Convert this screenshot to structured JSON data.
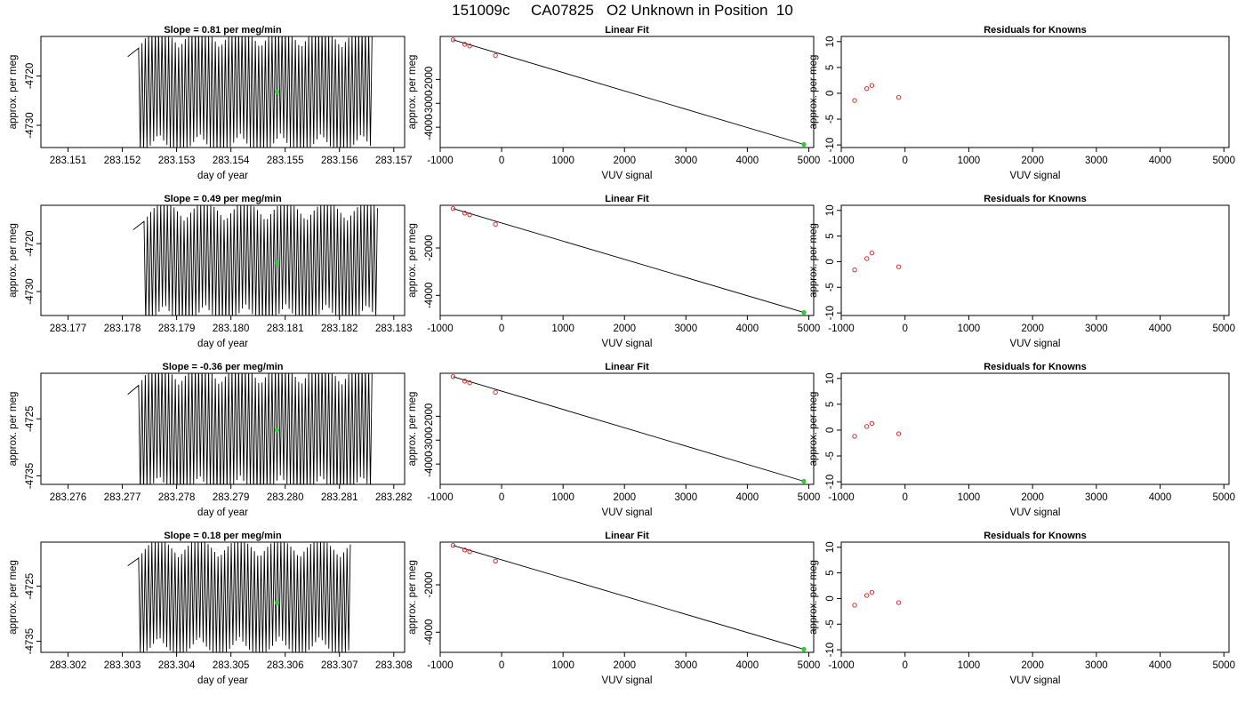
{
  "page": {
    "title": "151009c     CA07825   O2 Unknown in Position  10"
  },
  "colors": {
    "trace": "#000000",
    "known_point": "#cc3333",
    "unknown_point": "#33cc33",
    "frame": "#000000"
  },
  "chart_data": [
    {
      "type": "line",
      "row": 0,
      "col": 0,
      "title": "Slope =  0.81  per meg/min",
      "xlabel": "day of year",
      "ylabel": "approx. per meg",
      "xlim": [
        283.1505,
        283.1572
      ],
      "ylim": [
        -4734.5,
        -4712
      ],
      "xticks": [
        283.151,
        283.152,
        283.153,
        283.154,
        283.155,
        283.156,
        283.157
      ],
      "xtick_labels": [
        "283.151",
        "283.152",
        "283.153",
        "283.154",
        "283.155",
        "283.156",
        "283.157"
      ],
      "yticks": [
        -4720,
        -4730
      ],
      "ytick_labels": [
        "-4720",
        "-4730"
      ],
      "trace": {
        "x_start": 283.1523,
        "x_end": 283.1566,
        "cycles": 70,
        "center": -4723,
        "amp": 11.5,
        "pre_start": 283.1521
      },
      "unknown_point": {
        "x": 283.15485,
        "y": -4723.2
      }
    },
    {
      "type": "scatter",
      "row": 0,
      "col": 1,
      "title": "Linear Fit",
      "xlabel": "VUV signal",
      "ylabel": "approx. per meg",
      "xlim": [
        -1000,
        5080
      ],
      "ylim": [
        -4850,
        -200
      ],
      "xticks": [
        -1000,
        0,
        1000,
        2000,
        3000,
        4000,
        5000
      ],
      "xtick_labels": [
        "-1000",
        "0",
        "1000",
        "2000",
        "3000",
        "4000",
        "5000"
      ],
      "yticks": [
        -2000,
        -3000,
        -4000
      ],
      "ytick_labels": [
        "-2000",
        "-3000",
        "-4000"
      ],
      "knowns": [
        {
          "x": -790,
          "y": -340
        },
        {
          "x": -600,
          "y": -530
        },
        {
          "x": -520,
          "y": -600
        },
        {
          "x": -100,
          "y": -1000
        }
      ],
      "unknown": {
        "x": 4920,
        "y": -4720
      },
      "fit_line": {
        "x": [
          -790,
          4920
        ],
        "y": [
          -340,
          -4720
        ]
      }
    },
    {
      "type": "scatter",
      "row": 0,
      "col": 2,
      "title": "Residuals for Knowns",
      "xlabel": "VUV signal",
      "ylabel": "approx. per meg",
      "xlim": [
        -1000,
        5080
      ],
      "ylim": [
        -10.5,
        11
      ],
      "xticks": [
        -1000,
        0,
        1000,
        2000,
        3000,
        4000,
        5000
      ],
      "xtick_labels": [
        "-1000",
        "0",
        "1000",
        "2000",
        "3000",
        "4000",
        "5000"
      ],
      "yticks": [
        10,
        5,
        0,
        -5,
        -10
      ],
      "ytick_labels": [
        "10",
        "5",
        "0",
        "-5",
        "-10"
      ],
      "points": [
        {
          "x": -790,
          "y": -1.4
        },
        {
          "x": -600,
          "y": 0.9
        },
        {
          "x": -520,
          "y": 1.5
        },
        {
          "x": -100,
          "y": -0.8
        }
      ]
    },
    {
      "type": "line",
      "row": 1,
      "col": 0,
      "title": "Slope =  0.49  per meg/min",
      "xlabel": "day of year",
      "ylabel": "approx. per meg",
      "xlim": [
        283.1765,
        283.1832
      ],
      "ylim": [
        -4735,
        -4712
      ],
      "xticks": [
        283.177,
        283.178,
        283.179,
        283.18,
        283.181,
        283.182,
        283.183
      ],
      "xtick_labels": [
        "283.177",
        "283.178",
        "283.179",
        "283.180",
        "283.181",
        "283.182",
        "283.183"
      ],
      "yticks": [
        -4720,
        -4730
      ],
      "ytick_labels": [
        "-4720",
        "-4730"
      ],
      "trace": {
        "x_start": 283.1784,
        "x_end": 283.1827,
        "cycles": 70,
        "center": -4724,
        "amp": 11.5,
        "pre_start": 283.1782
      },
      "unknown_point": {
        "x": 283.18085,
        "y": -4724
      }
    },
    {
      "type": "scatter",
      "row": 1,
      "col": 1,
      "title": "Linear Fit",
      "xlabel": "VUV signal",
      "ylabel": "approx. per meg",
      "xlim": [
        -1000,
        5080
      ],
      "ylim": [
        -4850,
        -200
      ],
      "xticks": [
        -1000,
        0,
        1000,
        2000,
        3000,
        4000,
        5000
      ],
      "xtick_labels": [
        "-1000",
        "0",
        "1000",
        "2000",
        "3000",
        "4000",
        "5000"
      ],
      "yticks": [
        -2000,
        -4000
      ],
      "ytick_labels": [
        "-2000",
        "-4000"
      ],
      "knowns": [
        {
          "x": -790,
          "y": -340
        },
        {
          "x": -600,
          "y": -530
        },
        {
          "x": -520,
          "y": -600
        },
        {
          "x": -100,
          "y": -1000
        }
      ],
      "unknown": {
        "x": 4920,
        "y": -4720
      },
      "fit_line": {
        "x": [
          -790,
          4920
        ],
        "y": [
          -340,
          -4720
        ]
      }
    },
    {
      "type": "scatter",
      "row": 1,
      "col": 2,
      "title": "Residuals for Knowns",
      "xlabel": "VUV signal",
      "ylabel": "approx. per meg",
      "xlim": [
        -1000,
        5080
      ],
      "ylim": [
        -10.5,
        11
      ],
      "xticks": [
        -1000,
        0,
        1000,
        2000,
        3000,
        4000,
        5000
      ],
      "xtick_labels": [
        "-1000",
        "0",
        "1000",
        "2000",
        "3000",
        "4000",
        "5000"
      ],
      "yticks": [
        10,
        5,
        0,
        -5,
        -10
      ],
      "ytick_labels": [
        "10",
        "5",
        "0",
        "-5",
        "-10"
      ],
      "points": [
        {
          "x": -790,
          "y": -1.6
        },
        {
          "x": -600,
          "y": 0.6
        },
        {
          "x": -520,
          "y": 1.7
        },
        {
          "x": -100,
          "y": -1.0
        }
      ]
    },
    {
      "type": "line",
      "row": 2,
      "col": 0,
      "title": "Slope =  -0.36  per meg/min",
      "xlabel": "day of year",
      "ylabel": "approx. per meg",
      "xlim": [
        283.2755,
        283.2822
      ],
      "ylim": [
        -4736.5,
        -4717
      ],
      "xticks": [
        283.276,
        283.277,
        283.278,
        283.279,
        283.28,
        283.281,
        283.282
      ],
      "xtick_labels": [
        "283.276",
        "283.277",
        "283.278",
        "283.279",
        "283.280",
        "283.281",
        "283.282"
      ],
      "yticks": [
        -4725,
        -4735
      ],
      "ytick_labels": [
        "-4725",
        "-4735"
      ],
      "trace": {
        "x_start": 283.2773,
        "x_end": 283.2816,
        "cycles": 70,
        "center": -4727,
        "amp": 10.5,
        "pre_start": 283.2771
      },
      "unknown_point": {
        "x": 283.27985,
        "y": -4727
      }
    },
    {
      "type": "scatter",
      "row": 2,
      "col": 1,
      "title": "Linear Fit",
      "xlabel": "VUV signal",
      "ylabel": "approx. per meg",
      "xlim": [
        -1000,
        5080
      ],
      "ylim": [
        -4850,
        -200
      ],
      "xticks": [
        -1000,
        0,
        1000,
        2000,
        3000,
        4000,
        5000
      ],
      "xtick_labels": [
        "-1000",
        "0",
        "1000",
        "2000",
        "3000",
        "4000",
        "5000"
      ],
      "yticks": [
        -2000,
        -3000,
        -4000
      ],
      "ytick_labels": [
        "-2000",
        "-3000",
        "-4000"
      ],
      "knowns": [
        {
          "x": -790,
          "y": -340
        },
        {
          "x": -600,
          "y": -530
        },
        {
          "x": -520,
          "y": -600
        },
        {
          "x": -100,
          "y": -1000
        }
      ],
      "unknown": {
        "x": 4920,
        "y": -4720
      },
      "fit_line": {
        "x": [
          -790,
          4920
        ],
        "y": [
          -340,
          -4720
        ]
      }
    },
    {
      "type": "scatter",
      "row": 2,
      "col": 2,
      "title": "Residuals for Knowns",
      "xlabel": "VUV signal",
      "ylabel": "approx. per meg",
      "xlim": [
        -1000,
        5080
      ],
      "ylim": [
        -10.5,
        11
      ],
      "xticks": [
        -1000,
        0,
        1000,
        2000,
        3000,
        4000,
        5000
      ],
      "xtick_labels": [
        "-1000",
        "0",
        "1000",
        "2000",
        "3000",
        "4000",
        "5000"
      ],
      "yticks": [
        10,
        5,
        0,
        -5,
        -10
      ],
      "ytick_labels": [
        "10",
        "5",
        "0",
        "-5",
        "-10"
      ],
      "points": [
        {
          "x": -790,
          "y": -1.2
        },
        {
          "x": -600,
          "y": 0.7
        },
        {
          "x": -520,
          "y": 1.3
        },
        {
          "x": -100,
          "y": -0.7
        }
      ]
    },
    {
      "type": "line",
      "row": 3,
      "col": 0,
      "title": "Slope =  0.18  per meg/min",
      "xlabel": "day of year",
      "ylabel": "approx. per meg",
      "xlim": [
        283.3015,
        283.3082
      ],
      "ylim": [
        -4737,
        -4717
      ],
      "xticks": [
        283.302,
        283.303,
        283.304,
        283.305,
        283.306,
        283.307,
        283.308
      ],
      "xtick_labels": [
        "283.302",
        "283.303",
        "283.304",
        "283.305",
        "283.306",
        "283.307",
        "283.308"
      ],
      "yticks": [
        -4725,
        -4735
      ],
      "ytick_labels": [
        "-4725",
        "-4735"
      ],
      "trace": {
        "x_start": 283.3033,
        "x_end": 283.3072,
        "cycles": 64,
        "center": -4727,
        "amp": 9.5,
        "pre_start": 283.3031
      },
      "unknown_point": {
        "x": 283.30585,
        "y": -4728
      }
    },
    {
      "type": "scatter",
      "row": 3,
      "col": 1,
      "title": "Linear Fit",
      "xlabel": "VUV signal",
      "ylabel": "approx. per meg",
      "xlim": [
        -1000,
        5080
      ],
      "ylim": [
        -4850,
        -200
      ],
      "xticks": [
        -1000,
        0,
        1000,
        2000,
        3000,
        4000,
        5000
      ],
      "xtick_labels": [
        "-1000",
        "0",
        "1000",
        "2000",
        "3000",
        "4000",
        "5000"
      ],
      "yticks": [
        -2000,
        -4000
      ],
      "ytick_labels": [
        "-2000",
        "-4000"
      ],
      "knowns": [
        {
          "x": -790,
          "y": -340
        },
        {
          "x": -600,
          "y": -530
        },
        {
          "x": -520,
          "y": -600
        },
        {
          "x": -100,
          "y": -1000
        }
      ],
      "unknown": {
        "x": 4920,
        "y": -4720
      },
      "fit_line": {
        "x": [
          -790,
          4920
        ],
        "y": [
          -340,
          -4720
        ]
      }
    },
    {
      "type": "scatter",
      "row": 3,
      "col": 2,
      "title": "Residuals for Knowns",
      "xlabel": "VUV signal",
      "ylabel": "approx. per meg",
      "xlim": [
        -1000,
        5080
      ],
      "ylim": [
        -10.5,
        11
      ],
      "xticks": [
        -1000,
        0,
        1000,
        2000,
        3000,
        4000,
        5000
      ],
      "xtick_labels": [
        "-1000",
        "0",
        "1000",
        "2000",
        "3000",
        "4000",
        "5000"
      ],
      "yticks": [
        10,
        5,
        0,
        -5,
        -10
      ],
      "ytick_labels": [
        "10",
        "5",
        "0",
        "-5",
        "-10"
      ],
      "points": [
        {
          "x": -790,
          "y": -1.3
        },
        {
          "x": -600,
          "y": 0.6
        },
        {
          "x": -520,
          "y": 1.2
        },
        {
          "x": -100,
          "y": -0.8
        }
      ]
    }
  ]
}
